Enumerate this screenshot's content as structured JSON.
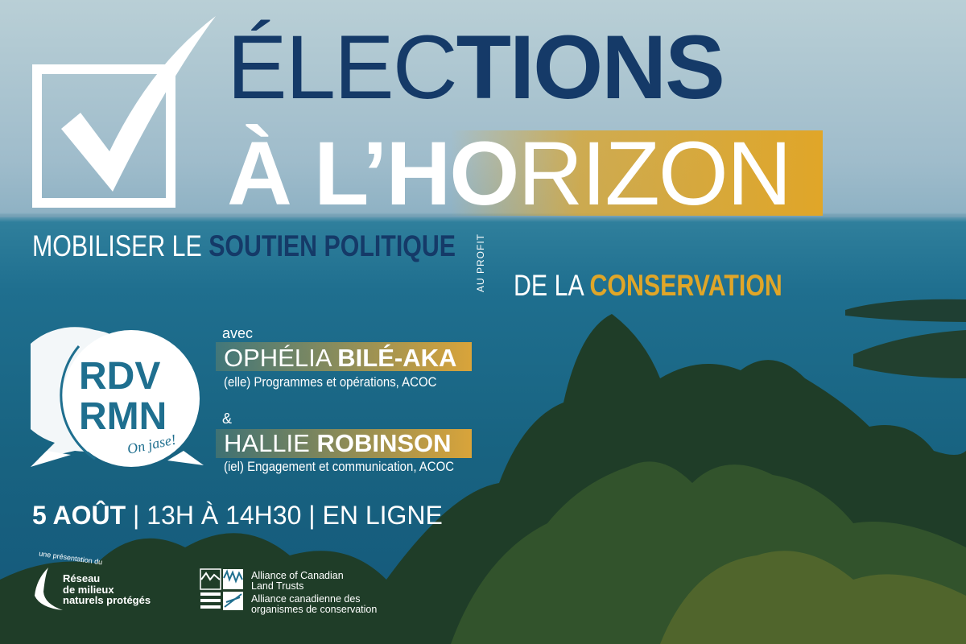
{
  "title": {
    "line1_light": "ÉLEC",
    "line1_bold": "TIONS",
    "line2_bold": "À L’HO",
    "line2_light": "RIZON"
  },
  "subtitle": {
    "part1": "MOBILISER LE ",
    "part1_bold": "SOUTIEN POLITIQUE",
    "rotated": "AU PROFIT",
    "part2": "DE LA ",
    "part2_bold": "CONSERVATION"
  },
  "logo": {
    "line1": "RDV",
    "line2": "RMN",
    "tagline": "On jase!"
  },
  "speakers": {
    "intro": "avec",
    "separator": "&",
    "items": [
      {
        "first": "OPHÉLIA ",
        "last": "BILÉ-AKA",
        "role": "(elle) Programmes et opérations, ACOC"
      },
      {
        "first": "HALLIE ",
        "last": "ROBINSON",
        "role": "(iel) Engagement et communication, ACOC"
      }
    ]
  },
  "event": {
    "date": "5 AOÛT",
    "sep": " | ",
    "time": "13H À 14H30",
    "place": "EN LIGNE"
  },
  "footer": {
    "presented_by": "une présentation du",
    "rmn": [
      "Réseau",
      "de milieux",
      "naturels protégés"
    ],
    "aclt_en": [
      "Alliance of Canadian",
      "Land Trusts"
    ],
    "aclt_fr": [
      "Alliance canadienne des",
      "organismes de conservation"
    ]
  },
  "colors": {
    "navy": "#153a68",
    "gold": "#e0a628",
    "sea": "#1f6f8f"
  }
}
